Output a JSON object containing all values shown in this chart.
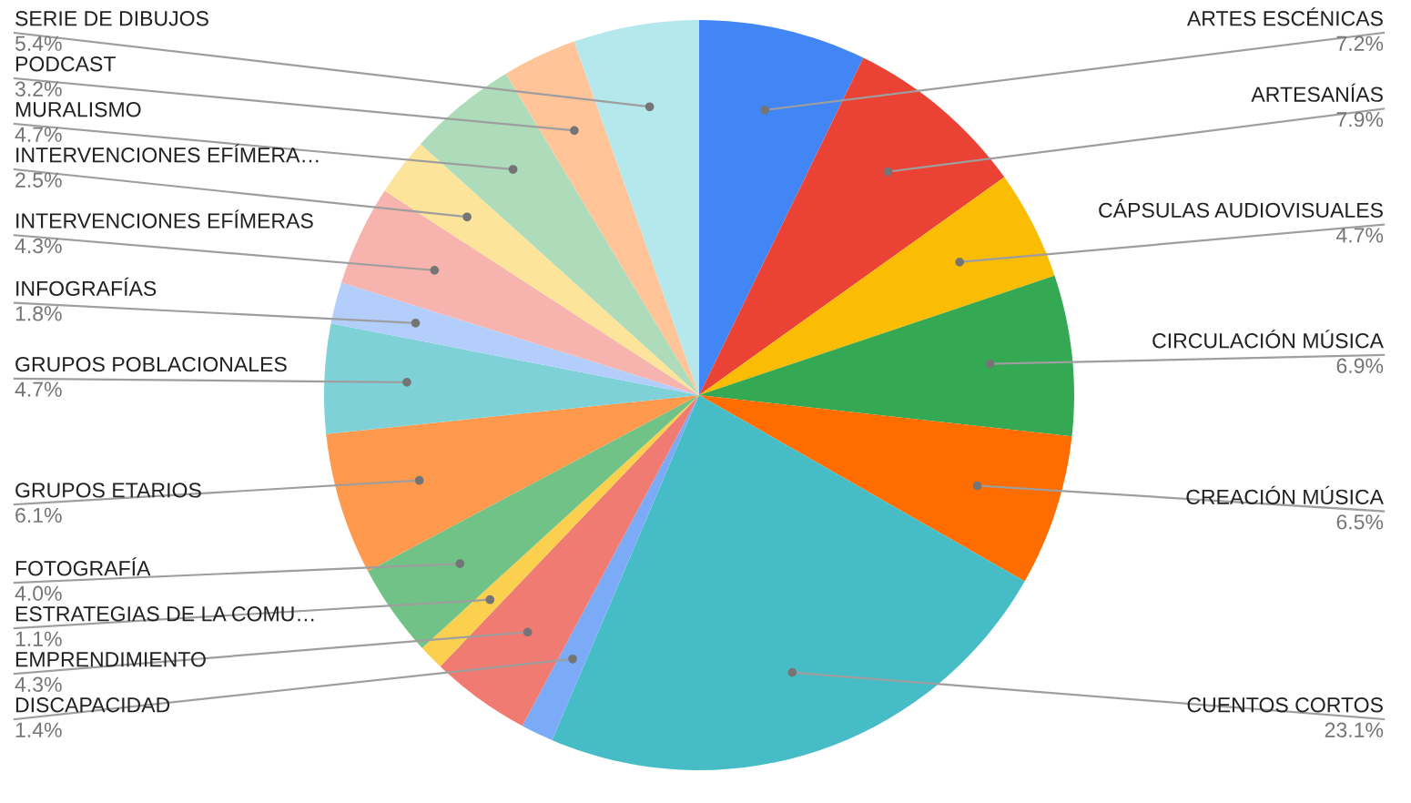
{
  "chart_data": {
    "type": "pie",
    "categories": [
      "ARTES ESCÉNICAS",
      "ARTESANÍAS",
      "CÁPSULAS AUDIOVISUALES",
      "CIRCULACIÓN MÚSICA",
      "CREACIÓN MÚSICA",
      "CUENTOS CORTOS",
      "DISCAPACIDAD",
      "EMPRENDIMIENTO",
      "ESTRATEGIAS DE LA COMU…",
      "FOTOGRAFÍA",
      "GRUPOS ETARIOS",
      "GRUPOS POBLACIONALES",
      "INFOGRAFÍAS",
      "INTERVENCIONES EFÍMERAS",
      "INTERVENCIONES EFÍMERA…",
      "MURALISMO",
      "PODCAST",
      "SERIE DE DIBUJOS"
    ],
    "values": [
      7.2,
      7.9,
      4.7,
      6.9,
      6.5,
      23.1,
      1.4,
      4.3,
      1.1,
      4.0,
      6.1,
      4.7,
      1.8,
      4.3,
      2.5,
      4.7,
      3.2,
      5.4
    ],
    "value_labels": [
      "7.2%",
      "7.9%",
      "4.7%",
      "6.9%",
      "6.5%",
      "23.1%",
      "1.4%",
      "4.3%",
      "1.1%",
      "4.0%",
      "6.1%",
      "4.7%",
      "1.8%",
      "4.3%",
      "2.5%",
      "4.7%",
      "3.2%",
      "5.4%"
    ],
    "colors": [
      "#4285f4",
      "#ea4335",
      "#fbbc04",
      "#34a853",
      "#ff6d01",
      "#46bdc6",
      "#7baaf7",
      "#f07b72",
      "#fcd04f",
      "#71c287",
      "#ff994d",
      "#7ed1d7",
      "#b3cefb",
      "#f7b4ae",
      "#fde49b",
      "#aedcba",
      "#ffc599",
      "#b5e8ec"
    ],
    "legend": false
  }
}
